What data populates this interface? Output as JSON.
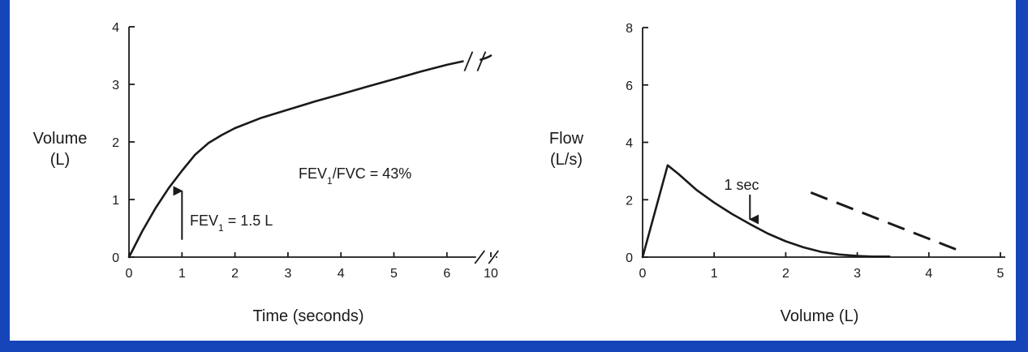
{
  "colors": {
    "frame": "#1545b8",
    "background": "#ffffff",
    "ink": "#1a1a1a"
  },
  "chart_data": [
    {
      "type": "line",
      "title": "",
      "xlabel": "Time (seconds)",
      "ylabel": "Volume (L)",
      "ylabel_lines": [
        "Volume",
        "(L)"
      ],
      "xlim": [
        0,
        10
      ],
      "ylim": [
        0,
        4
      ],
      "x_axis_break": "between 6 and 10",
      "x_ticks": [
        "0",
        "1",
        "2",
        "3",
        "4",
        "5",
        "6",
        "10"
      ],
      "y_ticks": [
        "0",
        "1",
        "2",
        "3",
        "4"
      ],
      "grid": false,
      "series": [
        {
          "x": [
            0,
            0.25,
            0.5,
            0.75,
            1,
            1.25,
            1.5,
            1.75,
            2,
            2.5,
            3,
            3.5,
            4,
            4.5,
            5,
            5.5,
            6,
            6.3
          ],
          "y": [
            0,
            0.45,
            0.85,
            1.2,
            1.5,
            1.78,
            1.98,
            2.12,
            2.24,
            2.42,
            2.56,
            2.7,
            2.83,
            2.96,
            3.09,
            3.22,
            3.34,
            3.4
          ]
        }
      ],
      "after_break": {
        "x": [
          10
        ],
        "y": [
          3.5
        ]
      },
      "annotations": {
        "ratio_prefix": "FEV",
        "ratio_sub": "1",
        "ratio_suffix": "/FVC = 43%",
        "fev1_prefix": "FEV",
        "fev1_sub": "1",
        "fev1_suffix": " = 1.5 L"
      }
    },
    {
      "type": "line",
      "title": "",
      "xlabel": "Volume (L)",
      "ylabel": "Flow (L/s)",
      "ylabel_lines": [
        "Flow",
        "(L/s)"
      ],
      "xlim": [
        0,
        5
      ],
      "ylim": [
        0,
        8
      ],
      "x_ticks": [
        "0",
        "1",
        "2",
        "3",
        "4",
        "5"
      ],
      "y_ticks": [
        "0",
        "2",
        "4",
        "6",
        "8"
      ],
      "grid": false,
      "series": [
        {
          "style": "solid",
          "x": [
            0,
            0.35,
            0.5,
            0.75,
            1,
            1.25,
            1.5,
            1.75,
            2,
            2.25,
            2.5,
            2.75,
            3,
            3.2,
            3.45
          ],
          "y": [
            0,
            3.2,
            2.9,
            2.35,
            1.9,
            1.5,
            1.15,
            0.82,
            0.55,
            0.34,
            0.18,
            0.09,
            0.04,
            0.02,
            0.02
          ]
        },
        {
          "style": "dashed",
          "x": [
            2.35,
            4.4
          ],
          "y": [
            2.25,
            0.25
          ]
        }
      ],
      "annotations": {
        "marker_label": "1 sec",
        "marker_x": 1.5
      }
    }
  ]
}
